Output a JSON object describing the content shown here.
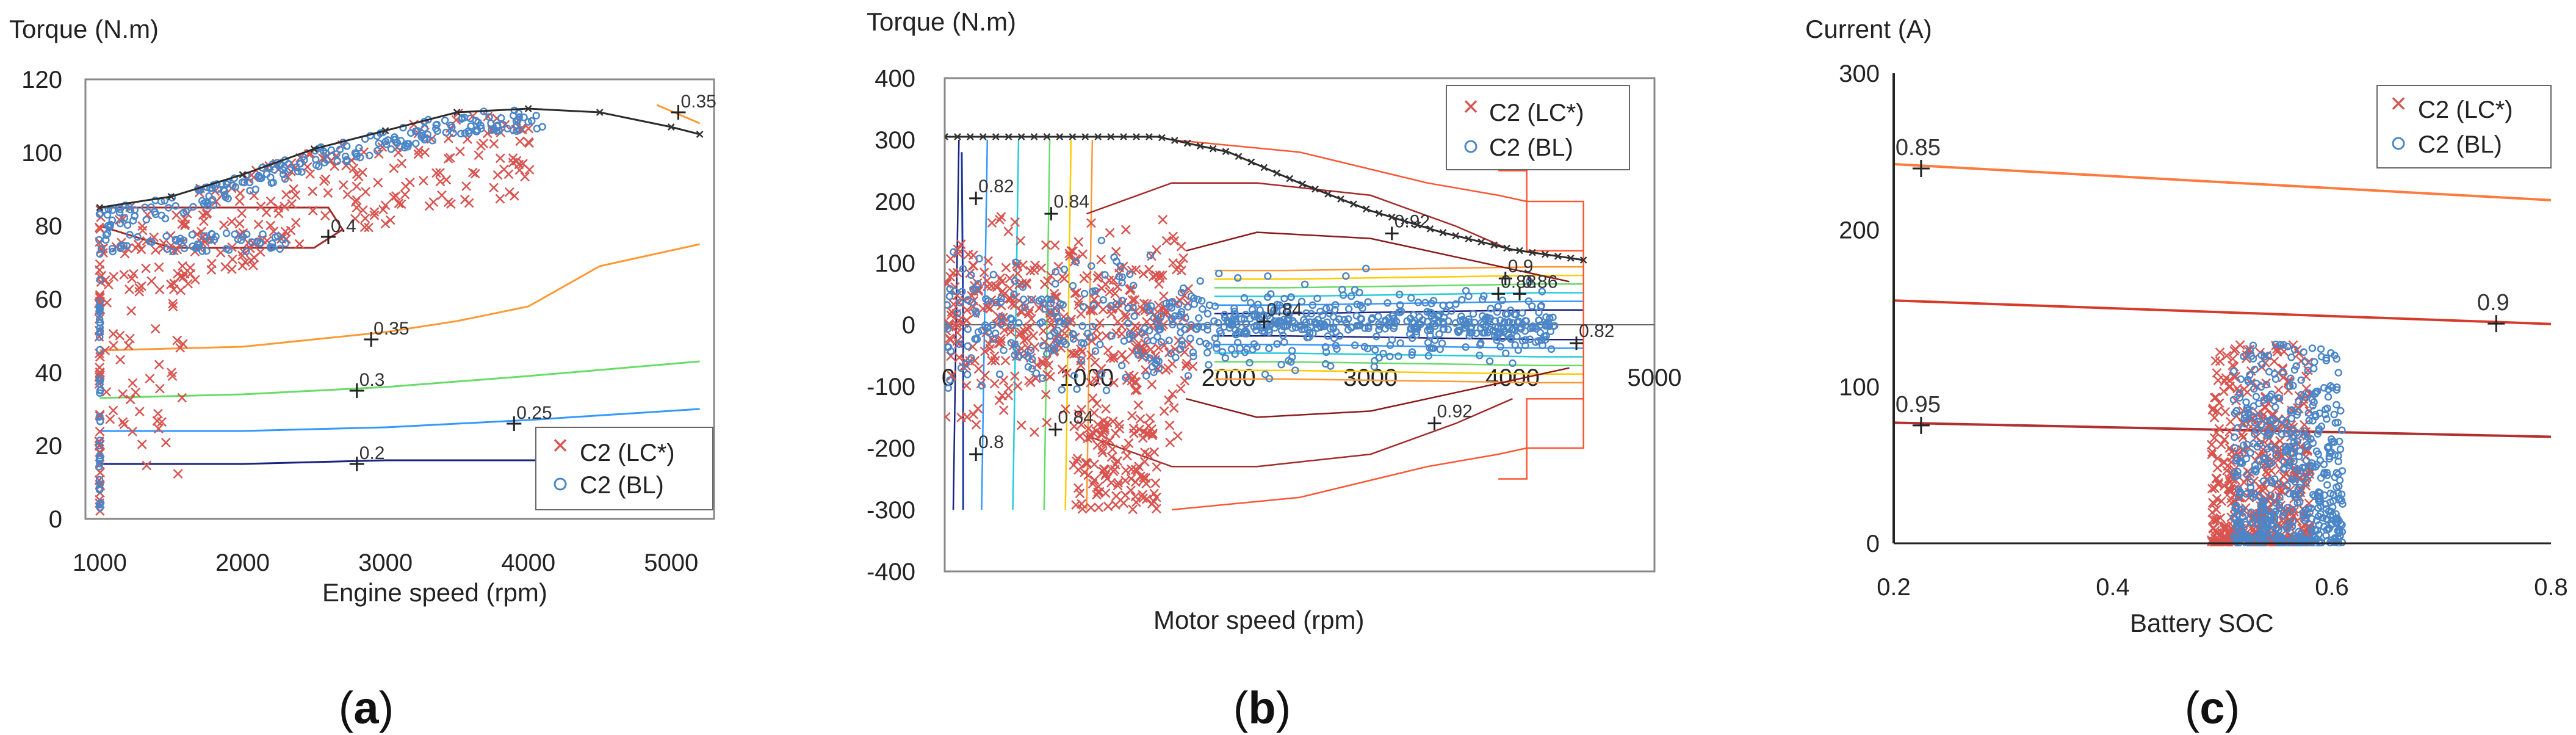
{
  "chart_data": [
    {
      "panel": "a",
      "type": "scatter",
      "caption": "(a)",
      "caption_letter": "a",
      "ylabel": "Torque (N.m)",
      "xlabel": "Engine speed (rpm)",
      "xlim": [
        900,
        5300
      ],
      "ylim": [
        0,
        120
      ],
      "xticks": [
        1000,
        2000,
        3000,
        4000,
        5000
      ],
      "yticks": [
        0,
        20,
        40,
        60,
        80,
        100,
        120
      ],
      "legend": {
        "position": "bottom-right",
        "entries": [
          "C2 (LC*)",
          "C2 (BL)"
        ]
      },
      "series": [
        {
          "name": "C2 (LC*)",
          "marker": "x",
          "color": "#d9534f"
        },
        {
          "name": "C2 (BL)",
          "marker": "o",
          "color": "#4a86c8"
        }
      ],
      "max_torque_curve": {
        "color": "#2b2b2b",
        "x": [
          1000,
          1500,
          2000,
          2500,
          3000,
          3500,
          4000,
          4500,
          5000,
          5200
        ],
        "y": [
          85,
          88,
          94,
          101,
          106,
          111,
          112,
          111,
          107,
          105
        ]
      },
      "contours": [
        {
          "label": "0.35",
          "color": "#ff9933",
          "x": [
            1000,
            2000,
            3000,
            3500,
            4000,
            4500,
            5200
          ],
          "y": [
            46,
            47,
            51,
            54,
            58,
            69,
            75
          ],
          "label_at": [
            2900,
            49
          ]
        },
        {
          "label": "0.3",
          "color": "#66dd66",
          "x": [
            1000,
            2000,
            3000,
            4000,
            5200
          ],
          "y": [
            33,
            34,
            36,
            39,
            43
          ],
          "label_at": [
            2800,
            35
          ]
        },
        {
          "label": "0.25",
          "color": "#3399ff",
          "x": [
            1000,
            2000,
            3000,
            4000,
            5200
          ],
          "y": [
            24,
            24,
            25,
            27,
            30
          ],
          "label_at": [
            3900,
            26
          ]
        },
        {
          "label": "0.2",
          "color": "#1a237e",
          "x": [
            1000,
            2000,
            3000,
            4000,
            5200
          ],
          "y": [
            15,
            15,
            16,
            16,
            16
          ],
          "label_at": [
            2800,
            15
          ]
        },
        {
          "label": "0.35",
          "color": "#ff9933",
          "x": [
            4900,
            5200
          ],
          "y": [
            113,
            108
          ],
          "label_at": [
            5050,
            111
          ]
        },
        {
          "label": "0.4",
          "color": "#a52a2a",
          "x": [
            1000,
            2600,
            2700,
            2500,
            1500,
            1000
          ],
          "y": [
            85,
            85,
            79,
            74,
            74,
            80
          ],
          "label_at": [
            2600,
            77
          ]
        }
      ]
    },
    {
      "panel": "b",
      "type": "scatter",
      "caption": "(b)",
      "caption_letter": "b",
      "ylabel": "Torque (N.m)",
      "xlabel": "Motor speed (rpm)",
      "xlim": [
        0,
        5000
      ],
      "ylim": [
        -400,
        400
      ],
      "xticks": [
        0,
        1000,
        2000,
        3000,
        4000,
        5000
      ],
      "xtick_labels": [
        "0",
        "1000",
        "2000",
        "3000",
        "4000",
        "5000"
      ],
      "yticks": [
        -400,
        -300,
        -200,
        -100,
        0,
        100,
        200,
        300,
        400
      ],
      "legend": {
        "position": "top-right",
        "entries": [
          "C2 (LC*)",
          "C2 (BL)"
        ]
      },
      "series": [
        {
          "name": "C2 (LC*)",
          "marker": "x",
          "color": "#d9534f"
        },
        {
          "name": "C2 (BL)",
          "marker": "o",
          "color": "#4a86c8"
        }
      ],
      "max_torque_curve": {
        "color": "#2b2b2b",
        "x": [
          0,
          1500,
          2000,
          2500,
          3000,
          3500,
          4000,
          4500
        ],
        "y": [
          305,
          305,
          280,
          230,
          185,
          150,
          122,
          105
        ]
      },
      "efficiency_labels": [
        {
          "text": "0.82",
          "x": 220,
          "y": 215
        },
        {
          "text": "0.84",
          "x": 750,
          "y": 190
        },
        {
          "text": "0.92",
          "x": 3150,
          "y": 158
        },
        {
          "text": "0.9",
          "x": 3950,
          "y": 85
        },
        {
          "text": "0.88",
          "x": 3900,
          "y": 60
        },
        {
          "text": "0.86",
          "x": 4050,
          "y": 60
        },
        {
          "text": "0.84",
          "x": 2250,
          "y": 15
        },
        {
          "text": "0.82",
          "x": 4450,
          "y": -20
        },
        {
          "text": "0.92",
          "x": 3450,
          "y": -150
        },
        {
          "text": "0.8",
          "x": 220,
          "y": -200
        },
        {
          "text": "0.84",
          "x": 780,
          "y": -160
        }
      ]
    },
    {
      "panel": "c",
      "type": "scatter",
      "caption": "(c)",
      "caption_letter": "c",
      "ylabel": "Current (A)",
      "xlabel": "Battery SOC",
      "xlim": [
        0.2,
        0.8
      ],
      "ylim": [
        0,
        300
      ],
      "xticks": [
        0.2,
        0.4,
        0.6,
        0.8
      ],
      "xtick_labels": [
        "0.2",
        "0.4",
        "0.6",
        "0.8"
      ],
      "yticks": [
        0,
        100,
        200,
        300
      ],
      "legend": {
        "position": "top-right",
        "entries": [
          "C2 (LC*)",
          "C2 (BL)"
        ]
      },
      "series": [
        {
          "name": "C2 (LC*)",
          "marker": "x",
          "color": "#d9534f"
        },
        {
          "name": "C2 (BL)",
          "marker": "o",
          "color": "#4a86c8"
        }
      ],
      "contours": [
        {
          "label": "0.85",
          "color": "#ff7a3d",
          "x": [
            0.2,
            0.8
          ],
          "y": [
            242,
            219
          ],
          "label_at": [
            0.225,
            240
          ]
        },
        {
          "label": "0.9",
          "color": "#d63a2a",
          "x": [
            0.2,
            0.8
          ],
          "y": [
            155,
            140
          ],
          "label_at": [
            0.75,
            141
          ]
        },
        {
          "label": "0.95",
          "color": "#b03030",
          "x": [
            0.2,
            0.8
          ],
          "y": [
            77,
            68
          ],
          "label_at": [
            0.225,
            76
          ]
        }
      ],
      "scatter_region": {
        "soc_range": [
          0.49,
          0.61
        ],
        "current_range": [
          0,
          127
        ]
      }
    }
  ]
}
